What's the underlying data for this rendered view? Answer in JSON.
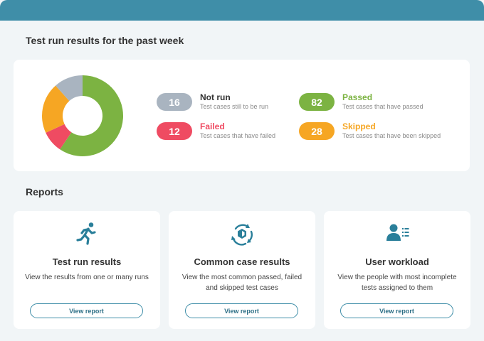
{
  "summary": {
    "title": "Test run results for the past week",
    "stats": [
      {
        "key": "not_run",
        "count": "16",
        "label": "Not run",
        "description": "Test cases still to be run",
        "color": "#a9b4c0",
        "label_color": "#333333"
      },
      {
        "key": "failed",
        "count": "12",
        "label": "Failed",
        "description": "Test cases that have failed",
        "color": "#ef4b62",
        "label_color": "#ef4b62"
      },
      {
        "key": "passed",
        "count": "82",
        "label": "Passed",
        "description": "Test cases that have passed",
        "color": "#7cb342",
        "label_color": "#7cb342"
      },
      {
        "key": "skipped",
        "count": "28",
        "label": "Skipped",
        "description": "Test cases that have been skipped",
        "color": "#f6a623",
        "label_color": "#f6a623"
      }
    ]
  },
  "chart_data": {
    "type": "pie",
    "categories": [
      "Not run",
      "Failed",
      "Passed",
      "Skipped"
    ],
    "values": [
      16,
      12,
      82,
      28
    ],
    "colors": [
      "#a9b4c0",
      "#ef4b62",
      "#7cb342",
      "#f6a623"
    ],
    "donut": true,
    "start_category": "Passed",
    "direction": "clockwise",
    "order": [
      "Passed",
      "Failed",
      "Skipped",
      "Not run"
    ],
    "title": ""
  },
  "reports": {
    "title": "Reports",
    "cards": [
      {
        "icon": "running-person-icon",
        "title": "Test run results",
        "description": "View the results from one or many runs",
        "button": "View report"
      },
      {
        "icon": "cycle-arrows-icon",
        "title": "Common case results",
        "description": "View the most common passed, failed and skipped test cases",
        "button": "View report"
      },
      {
        "icon": "user-list-icon",
        "title": "User workload",
        "description": "View the people with most incomplete tests assigned to them",
        "button": "View report"
      }
    ]
  },
  "colors": {
    "accent": "#3f8ea8",
    "icon": "#2a7f9a"
  }
}
